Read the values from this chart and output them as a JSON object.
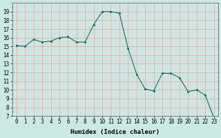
{
  "x": [
    0,
    1,
    2,
    3,
    4,
    5,
    6,
    7,
    8,
    9,
    10,
    11,
    12,
    13,
    14,
    15,
    16,
    17,
    18,
    19,
    20,
    21,
    22,
    23
  ],
  "y": [
    15.1,
    15.0,
    15.8,
    15.5,
    15.6,
    16.0,
    16.1,
    15.5,
    15.5,
    17.5,
    19.0,
    19.0,
    18.8,
    14.8,
    11.8,
    10.1,
    9.9,
    11.9,
    11.9,
    11.4,
    9.8,
    10.0,
    9.4,
    6.8
  ],
  "xlabel": "Humidex (Indice chaleur)",
  "ylim": [
    7,
    20
  ],
  "xlim": [
    -0.5,
    23.5
  ],
  "yticks": [
    7,
    8,
    9,
    10,
    11,
    12,
    13,
    14,
    15,
    16,
    17,
    18,
    19
  ],
  "xticks": [
    0,
    1,
    2,
    3,
    4,
    5,
    6,
    7,
    8,
    9,
    10,
    11,
    12,
    13,
    14,
    15,
    16,
    17,
    18,
    19,
    20,
    21,
    22,
    23
  ],
  "line_color": "#1a6b5a",
  "marker_color": "#1a6b5a",
  "bg_color": "#cce8e4",
  "grid_major_color": "#ee9999",
  "grid_minor_color": "#f5cccc",
  "axis_label_fontsize": 6.5,
  "tick_fontsize": 5.5
}
